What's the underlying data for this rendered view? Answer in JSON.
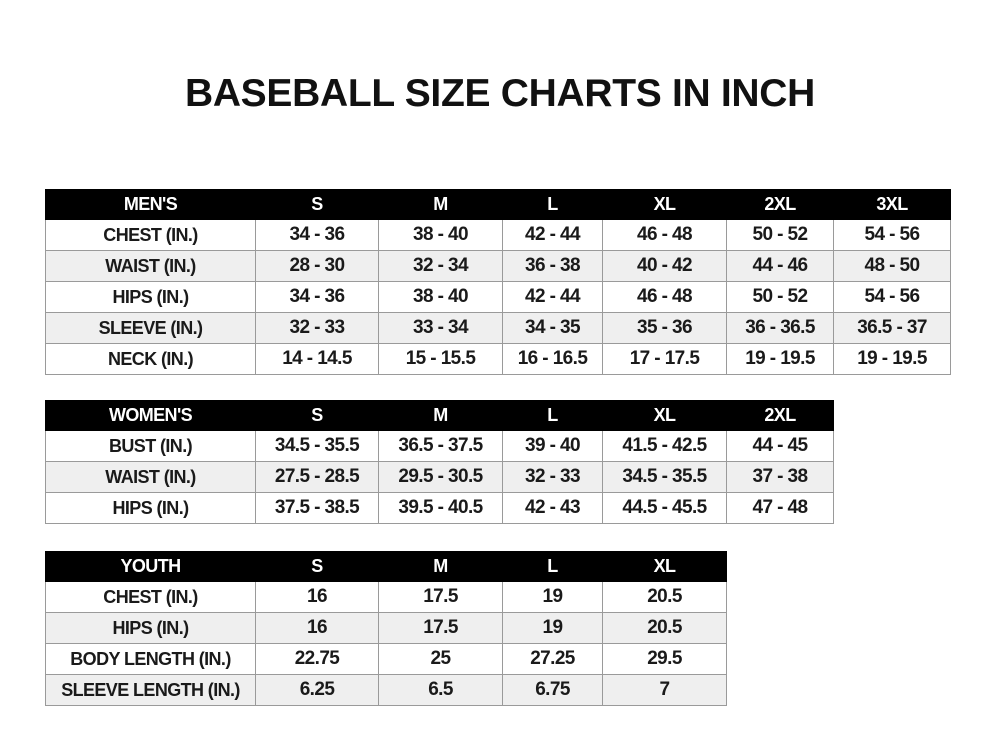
{
  "title": "BASEBALL SIZE CHARTS IN INCH",
  "tables": [
    {
      "id": "mens",
      "headers": [
        "MEN'S",
        "S",
        "M",
        "L",
        "XL",
        "2XL",
        "3XL"
      ],
      "rows": [
        [
          "CHEST (IN.)",
          "34 - 36",
          "38 - 40",
          "42 - 44",
          "46 - 48",
          "50 - 52",
          "54 - 56"
        ],
        [
          "WAIST (IN.)",
          "28 - 30",
          "32 - 34",
          "36 - 38",
          "40 - 42",
          "44 - 46",
          "48 - 50"
        ],
        [
          "HIPS (IN.)",
          "34 - 36",
          "38 - 40",
          "42 - 44",
          "46 - 48",
          "50 - 52",
          "54 - 56"
        ],
        [
          "SLEEVE (IN.)",
          "32 - 33",
          "33 - 34",
          "34 - 35",
          "35 - 36",
          "36 - 36.5",
          "36.5 - 37"
        ],
        [
          "NECK (IN.)",
          "14 - 14.5",
          "15 - 15.5",
          "16 - 16.5",
          "17 - 17.5",
          "19 - 19.5",
          "19 - 19.5"
        ]
      ]
    },
    {
      "id": "womens",
      "headers": [
        "WOMEN'S",
        "S",
        "M",
        "L",
        "XL",
        "2XL"
      ],
      "rows": [
        [
          "BUST (IN.)",
          "34.5 - 35.5",
          "36.5 - 37.5",
          "39 - 40",
          "41.5 - 42.5",
          "44 - 45"
        ],
        [
          "WAIST (IN.)",
          "27.5 - 28.5",
          "29.5 - 30.5",
          "32 - 33",
          "34.5 - 35.5",
          "37 - 38"
        ],
        [
          "HIPS (IN.)",
          "37.5 - 38.5",
          "39.5 - 40.5",
          "42 - 43",
          "44.5 - 45.5",
          "47 - 48"
        ]
      ]
    },
    {
      "id": "youth",
      "headers": [
        "YOUTH",
        "S",
        "M",
        "L",
        "XL"
      ],
      "rows": [
        [
          "CHEST (IN.)",
          "16",
          "17.5",
          "19",
          "20.5"
        ],
        [
          "HIPS (IN.)",
          "16",
          "17.5",
          "19",
          "20.5"
        ],
        [
          "BODY LENGTH (IN.)",
          "22.75",
          "25",
          "27.25",
          "29.5"
        ],
        [
          "SLEEVE LENGTH (IN.)",
          "6.25",
          "6.5",
          "6.75",
          "7"
        ]
      ]
    }
  ],
  "colors": {
    "header_bg": "#000000",
    "header_text": "#ffffff",
    "alt_row": "#efefef"
  }
}
